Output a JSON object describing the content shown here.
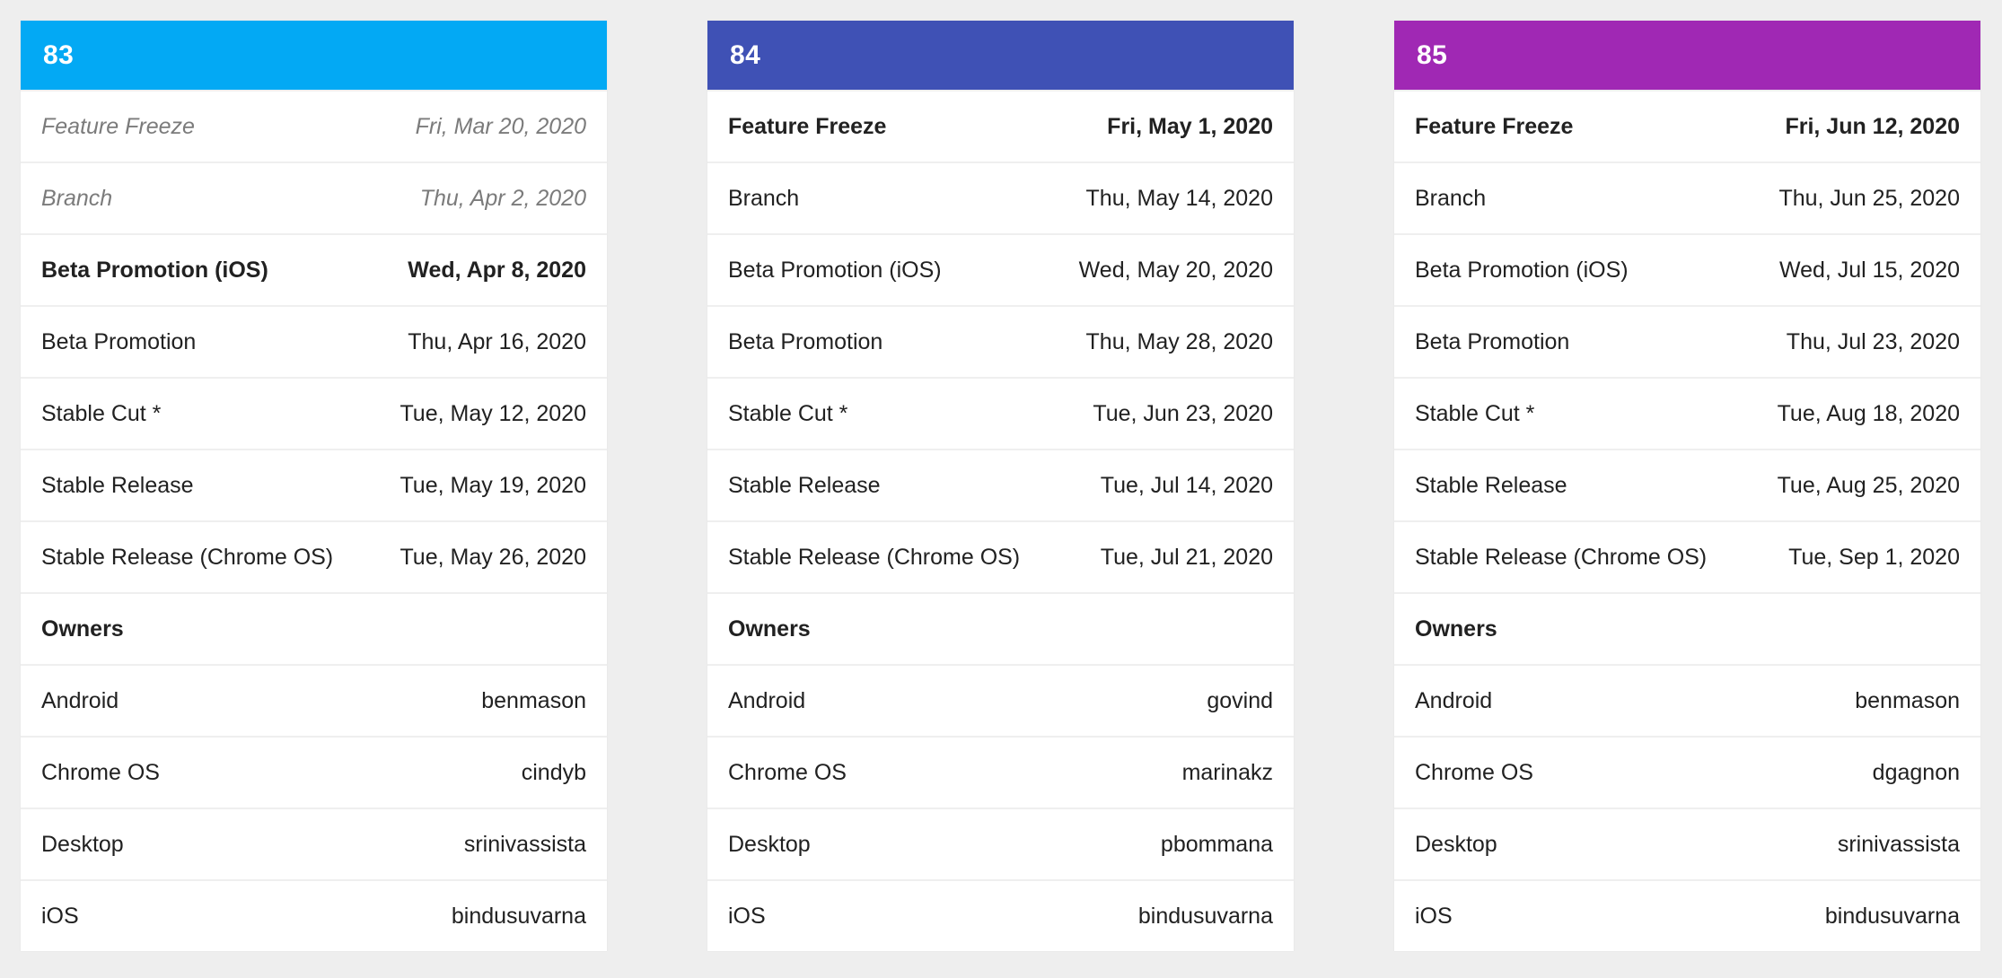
{
  "page": {
    "background_color": "#eeeeee"
  },
  "cards": [
    {
      "version": "83",
      "header_color": "#03a9f4",
      "milestones": [
        {
          "label": "Feature Freeze",
          "date": "Fri, Mar 20, 2020",
          "style": "past"
        },
        {
          "label": "Branch",
          "date": "Thu, Apr 2, 2020",
          "style": "past"
        },
        {
          "label": "Beta Promotion (iOS)",
          "date": "Wed, Apr 8, 2020",
          "style": "next"
        },
        {
          "label": "Beta Promotion",
          "date": "Thu, Apr 16, 2020",
          "style": "future"
        },
        {
          "label": "Stable Cut *",
          "date": "Tue, May 12, 2020",
          "style": "future"
        },
        {
          "label": "Stable Release",
          "date": "Tue, May 19, 2020",
          "style": "future"
        },
        {
          "label": "Stable Release (Chrome OS)",
          "date": "Tue, May 26, 2020",
          "style": "future"
        }
      ],
      "owners_label": "Owners",
      "owners": [
        {
          "platform": "Android",
          "owner": "benmason"
        },
        {
          "platform": "Chrome OS",
          "owner": "cindyb"
        },
        {
          "platform": "Desktop",
          "owner": "srinivassista"
        },
        {
          "platform": "iOS",
          "owner": "bindusuvarna"
        }
      ]
    },
    {
      "version": "84",
      "header_color": "#3f51b5",
      "milestones": [
        {
          "label": "Feature Freeze",
          "date": "Fri, May 1, 2020",
          "style": "next"
        },
        {
          "label": "Branch",
          "date": "Thu, May 14, 2020",
          "style": "future"
        },
        {
          "label": "Beta Promotion (iOS)",
          "date": "Wed, May 20, 2020",
          "style": "future"
        },
        {
          "label": "Beta Promotion",
          "date": "Thu, May 28, 2020",
          "style": "future"
        },
        {
          "label": "Stable Cut *",
          "date": "Tue, Jun 23, 2020",
          "style": "future"
        },
        {
          "label": "Stable Release",
          "date": "Tue, Jul 14, 2020",
          "style": "future"
        },
        {
          "label": "Stable Release (Chrome OS)",
          "date": "Tue, Jul 21, 2020",
          "style": "future"
        }
      ],
      "owners_label": "Owners",
      "owners": [
        {
          "platform": "Android",
          "owner": "govind"
        },
        {
          "platform": "Chrome OS",
          "owner": "marinakz"
        },
        {
          "platform": "Desktop",
          "owner": "pbommana"
        },
        {
          "platform": "iOS",
          "owner": "bindusuvarna"
        }
      ]
    },
    {
      "version": "85",
      "header_color": "#a028b4",
      "milestones": [
        {
          "label": "Feature Freeze",
          "date": "Fri, Jun 12, 2020",
          "style": "next"
        },
        {
          "label": "Branch",
          "date": "Thu, Jun 25, 2020",
          "style": "future"
        },
        {
          "label": "Beta Promotion (iOS)",
          "date": "Wed, Jul 15, 2020",
          "style": "future"
        },
        {
          "label": "Beta Promotion",
          "date": "Thu, Jul 23, 2020",
          "style": "future"
        },
        {
          "label": "Stable Cut *",
          "date": "Tue, Aug 18, 2020",
          "style": "future"
        },
        {
          "label": "Stable Release",
          "date": "Tue, Aug 25, 2020",
          "style": "future"
        },
        {
          "label": "Stable Release (Chrome OS)",
          "date": "Tue, Sep 1, 2020",
          "style": "future"
        }
      ],
      "owners_label": "Owners",
      "owners": [
        {
          "platform": "Android",
          "owner": "benmason"
        },
        {
          "platform": "Chrome OS",
          "owner": "dgagnon"
        },
        {
          "platform": "Desktop",
          "owner": "srinivassista"
        },
        {
          "platform": "iOS",
          "owner": "bindusuvarna"
        }
      ]
    }
  ]
}
